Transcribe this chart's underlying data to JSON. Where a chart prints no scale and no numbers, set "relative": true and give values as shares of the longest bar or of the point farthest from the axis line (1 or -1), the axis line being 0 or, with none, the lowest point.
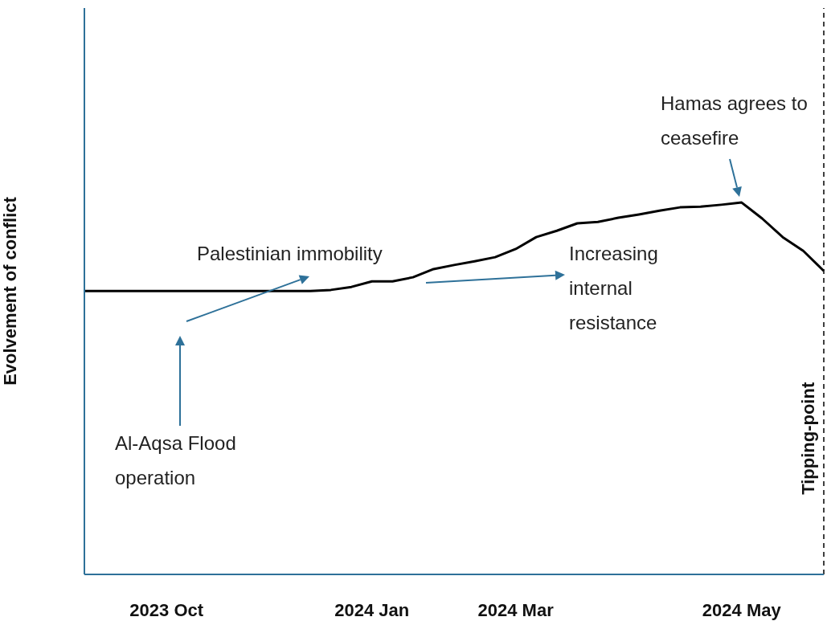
{
  "chart_data": {
    "type": "line",
    "relative": true,
    "ylabel": "Evolvement of conflict",
    "categories": [
      null,
      null,
      null,
      null,
      "2023 Oct",
      null,
      null,
      null,
      null,
      null,
      null,
      null,
      null,
      null,
      "2024 Jan",
      null,
      null,
      null,
      null,
      null,
      null,
      "2024 Mar",
      null,
      null,
      null,
      null,
      null,
      null,
      null,
      null,
      null,
      null,
      "2024 May",
      null,
      null,
      null,
      null
    ],
    "series": [
      {
        "color": "#000000",
        "values": [
          0.762,
          0.762,
          0.762,
          0.762,
          0.762,
          0.762,
          0.762,
          0.762,
          0.762,
          0.762,
          0.762,
          0.762,
          0.765,
          0.773,
          0.788,
          0.788,
          0.799,
          0.821,
          0.832,
          0.842,
          0.853,
          0.875,
          0.907,
          0.924,
          0.944,
          0.948,
          0.959,
          0.968,
          0.978,
          0.987,
          0.989,
          0.994,
          1,
          0.957,
          0.907,
          0.87,
          0.816
        ]
      }
    ],
    "annotations": [
      "Al-Aqsa Flood operation",
      "Palestinian immobility",
      "Increasing internal resistance",
      "Hamas agrees to ceasefire",
      "Tipping-point"
    ],
    "marker": "none",
    "line_style": "solid",
    "grid": false,
    "legend": false
  }
}
